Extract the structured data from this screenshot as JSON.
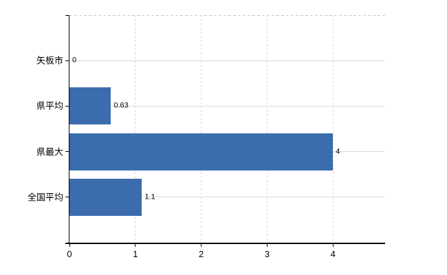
{
  "chart_data": {
    "type": "bar",
    "orientation": "horizontal",
    "title": "",
    "categories": [
      "矢板市",
      "県平均",
      "県最大",
      "全国平均"
    ],
    "values": [
      0,
      0.63,
      4,
      1.1
    ],
    "value_labels": [
      "0",
      "0.63",
      "4",
      "1.1"
    ],
    "xlim": [
      0,
      4.79
    ],
    "xticks": [
      0,
      1,
      2,
      3,
      4
    ],
    "xtick_labels": [
      "0",
      "1",
      "2",
      "3",
      "4"
    ],
    "legend_position": "none",
    "grid": {
      "horizontal_lines": "solid, one per category",
      "vertical_lines": "dashed, at each x tick",
      "plot_top_border": "dashed"
    }
  },
  "colors": {
    "background": "#ffffff",
    "bar": "#3b6cae",
    "axis": "#000000",
    "text": "#000000",
    "gridline_horizontal": "#d8ded8",
    "gridline_vertical": "#d6d6d6",
    "top_border": "#cccccc"
  }
}
